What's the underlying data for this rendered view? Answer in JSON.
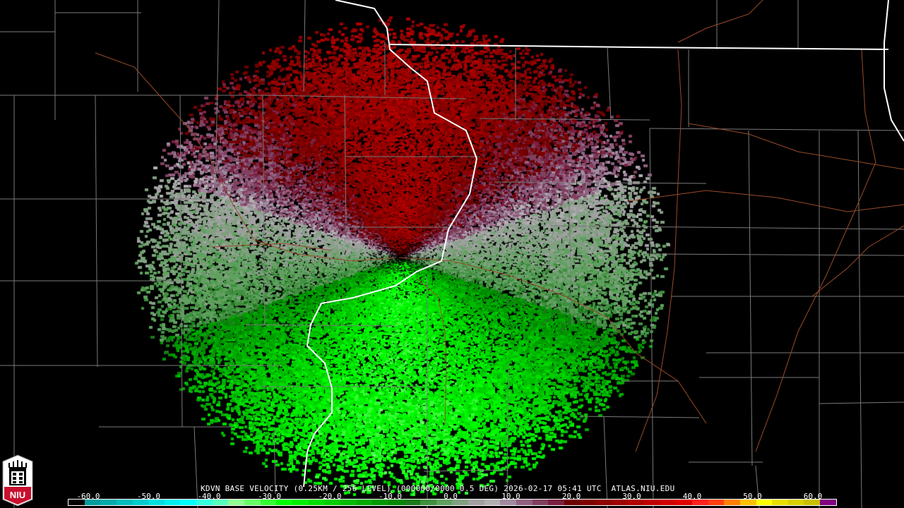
{
  "title": "KDVN BASE VELOCITY (0.25KM / 256 LEVEL) (000000/0000 0.5 DEG) 2026-02-17 05:41 UTC  ATLAS.NIU.EDU",
  "logo": {
    "text": "NIU",
    "colors": {
      "top": "#ffffff",
      "bottom": "#c8102e"
    }
  },
  "colorbar": {
    "range": [
      -64,
      64
    ],
    "tick_labels": [
      "-60.0",
      "-50.0",
      "-40.0",
      "-30.0",
      "-20.0",
      "-10.0",
      "0.0",
      "10.0",
      "20.0",
      "30.0",
      "40.0",
      "50.0",
      "60.0"
    ],
    "tick_values": [
      -60,
      -50,
      -40,
      -30,
      -20,
      -10,
      0,
      10,
      20,
      30,
      40,
      50,
      60
    ],
    "colors": [
      "#000000",
      "#009c9c",
      "#00aaaa",
      "#00bcbc",
      "#00cccc",
      "#00dddd",
      "#00eeee",
      "#00ffff",
      "#33ffdd",
      "#55ffbb",
      "#90ff90",
      "#66ff66",
      "#33ff33",
      "#00ff00",
      "#00ee00",
      "#00dd00",
      "#00cc00",
      "#00bb00",
      "#00aa00",
      "#009900",
      "#008800",
      "#1a7a1a",
      "#3f8f3f",
      "#5fa05f",
      "#80a080",
      "#a0a0a0",
      "#b0b0b0",
      "#a08aa0",
      "#906080",
      "#804060",
      "#7a2040",
      "#6e0000",
      "#800000",
      "#900000",
      "#a00000",
      "#b00000",
      "#c00000",
      "#d00000",
      "#e00000",
      "#ff2020",
      "#ff4010",
      "#ff8000",
      "#ffc000",
      "#ffff00",
      "#e8e000",
      "#d8d000",
      "#c8c000",
      "#800080"
    ]
  },
  "radar": {
    "site": "KDVN",
    "product": "base velocity",
    "inbound_color": "#00c000",
    "outbound_color": "#b00000",
    "near_zero_color": "#a0a0a0"
  },
  "map_colors": {
    "state_border": "#ffffff",
    "county_border": "#808080",
    "highway": "#a0522d"
  }
}
